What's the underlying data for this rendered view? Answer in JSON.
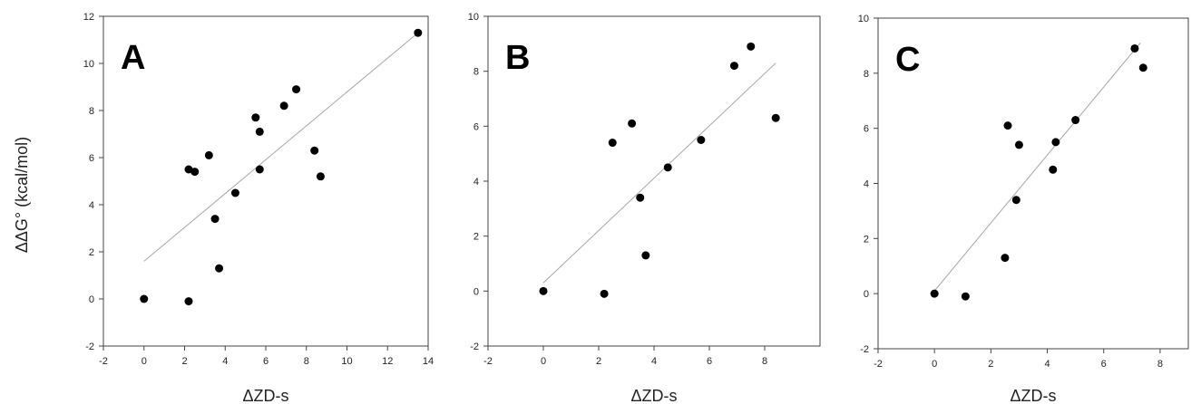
{
  "figure": {
    "ylabel": "ΔΔG° (kcal/mol)"
  },
  "colors": {
    "points": "#000000",
    "fit_line": "#a6a6a6",
    "frame": "#444444"
  },
  "chart_data": [
    {
      "type": "scatter",
      "panel": "A",
      "xlabel": "ΔZD-s",
      "ylabel": "ΔΔG° (kcal/mol)",
      "xlim": [
        -2,
        14
      ],
      "ylim": [
        -2,
        12
      ],
      "xticks": [
        "-2",
        "0",
        "2",
        "4",
        "6",
        "8",
        "10",
        "12",
        "14"
      ],
      "yticks": [
        "-2",
        "0",
        "2",
        "4",
        "6",
        "8",
        "10",
        "12"
      ],
      "points": [
        {
          "x": 0.0,
          "y": 0.0
        },
        {
          "x": 2.2,
          "y": -0.1
        },
        {
          "x": 2.2,
          "y": 5.5
        },
        {
          "x": 2.5,
          "y": 5.4
        },
        {
          "x": 3.2,
          "y": 6.1
        },
        {
          "x": 3.5,
          "y": 3.4
        },
        {
          "x": 3.7,
          "y": 1.3
        },
        {
          "x": 4.5,
          "y": 4.5
        },
        {
          "x": 5.5,
          "y": 7.7
        },
        {
          "x": 5.7,
          "y": 7.1
        },
        {
          "x": 5.7,
          "y": 5.5
        },
        {
          "x": 6.9,
          "y": 8.2
        },
        {
          "x": 7.5,
          "y": 8.9
        },
        {
          "x": 8.4,
          "y": 6.3
        },
        {
          "x": 8.7,
          "y": 5.2
        },
        {
          "x": 13.5,
          "y": 11.3
        }
      ],
      "fit": [
        [
          0.0,
          1.6
        ],
        [
          13.5,
          11.3
        ]
      ],
      "grid": false
    },
    {
      "type": "scatter",
      "panel": "B",
      "xlabel": "ΔZD-s",
      "xlim": [
        -2,
        10
      ],
      "ylim": [
        -2,
        10
      ],
      "xticks": [
        "-2",
        "0",
        "2",
        "4",
        "6",
        "8"
      ],
      "yticks": [
        "-2",
        "0",
        "2",
        "4",
        "6",
        "8",
        "10"
      ],
      "points": [
        {
          "x": 0.0,
          "y": 0.0
        },
        {
          "x": 2.2,
          "y": -0.1
        },
        {
          "x": 2.5,
          "y": 5.4
        },
        {
          "x": 3.2,
          "y": 6.1
        },
        {
          "x": 3.5,
          "y": 3.4
        },
        {
          "x": 3.7,
          "y": 1.3
        },
        {
          "x": 4.5,
          "y": 4.5
        },
        {
          "x": 5.7,
          "y": 5.5
        },
        {
          "x": 6.9,
          "y": 8.2
        },
        {
          "x": 7.5,
          "y": 8.9
        },
        {
          "x": 8.4,
          "y": 6.3
        }
      ],
      "fit": [
        [
          0.0,
          0.3
        ],
        [
          8.4,
          8.3
        ]
      ],
      "grid": false
    },
    {
      "type": "scatter",
      "panel": "C",
      "xlabel": "ΔZD-s",
      "xlim": [
        -2,
        9
      ],
      "ylim": [
        -2,
        10
      ],
      "xticks": [
        "-2",
        "0",
        "2",
        "4",
        "6",
        "8"
      ],
      "yticks": [
        "-2",
        "0",
        "2",
        "4",
        "6",
        "8",
        "10"
      ],
      "points": [
        {
          "x": 0.0,
          "y": 0.0
        },
        {
          "x": 1.1,
          "y": -0.1
        },
        {
          "x": 2.5,
          "y": 1.3
        },
        {
          "x": 2.6,
          "y": 6.1
        },
        {
          "x": 2.9,
          "y": 3.4
        },
        {
          "x": 3.0,
          "y": 5.4
        },
        {
          "x": 4.2,
          "y": 4.5
        },
        {
          "x": 4.3,
          "y": 5.5
        },
        {
          "x": 5.0,
          "y": 6.3
        },
        {
          "x": 7.1,
          "y": 8.9
        },
        {
          "x": 7.4,
          "y": 8.2
        }
      ],
      "fit": [
        [
          0.0,
          0.1
        ],
        [
          7.3,
          9.1
        ]
      ],
      "grid": false
    }
  ]
}
